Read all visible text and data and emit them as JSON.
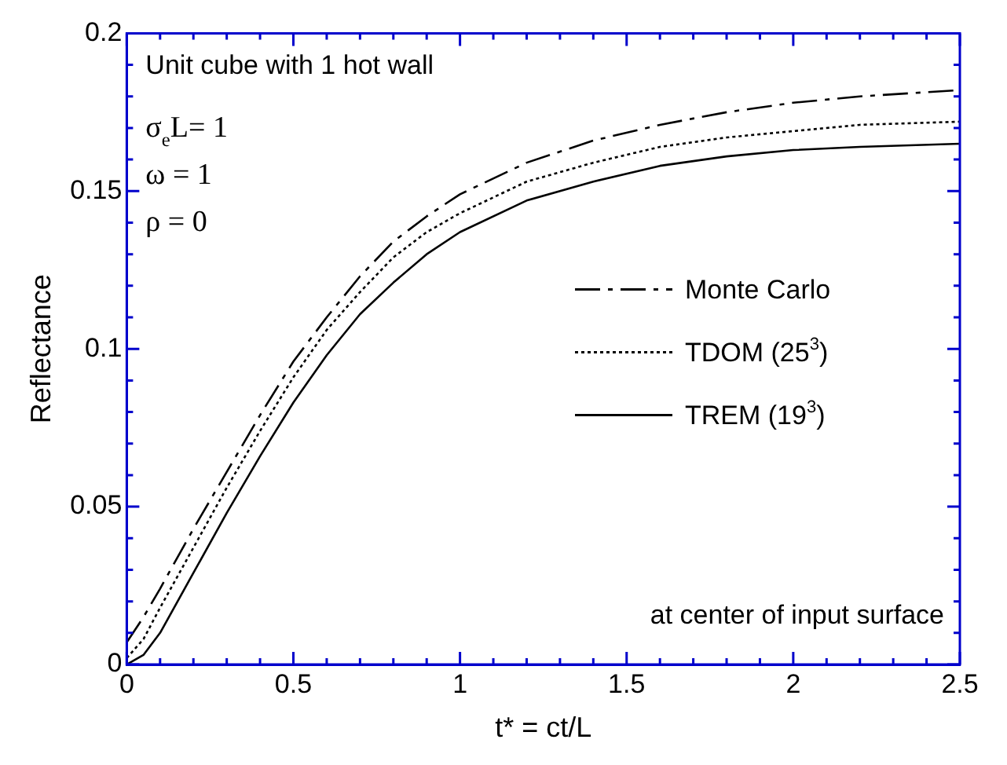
{
  "chart_data": {
    "type": "line",
    "xlabel": "t* = ct/L",
    "ylabel": "Reflectance",
    "x": [
      0,
      0.05,
      0.1,
      0.2,
      0.3,
      0.4,
      0.5,
      0.6,
      0.7,
      0.8,
      0.9,
      1.0,
      1.2,
      1.4,
      1.6,
      1.8,
      2.0,
      2.2,
      2.5
    ],
    "series": [
      {
        "name": "Monte Carlo",
        "color": "#000000",
        "line_style": "dashed",
        "values": [
          0.007,
          0.015,
          0.024,
          0.043,
          0.061,
          0.079,
          0.096,
          0.11,
          0.123,
          0.134,
          0.142,
          0.149,
          0.159,
          0.166,
          0.171,
          0.175,
          0.178,
          0.18,
          0.182
        ]
      },
      {
        "name": "TDOM (25$^{3}$)",
        "color": "#000000",
        "line_style": "dotted",
        "values": [
          0.002,
          0.008,
          0.018,
          0.037,
          0.056,
          0.074,
          0.091,
          0.106,
          0.118,
          0.129,
          0.137,
          0.143,
          0.153,
          0.159,
          0.164,
          0.167,
          0.169,
          0.171,
          0.172
        ]
      },
      {
        "name": "TREM (19$^{3}$)",
        "color": "#000000",
        "line_style": "solid",
        "values": [
          0,
          0.003,
          0.01,
          0.029,
          0.048,
          0.066,
          0.083,
          0.098,
          0.111,
          0.121,
          0.13,
          0.137,
          0.147,
          0.153,
          0.158,
          0.161,
          0.163,
          0.164,
          0.165
        ]
      }
    ],
    "xlim": [
      0,
      2.5
    ],
    "xticks": [
      0,
      {
        "value": 0.1,
        "label": null
      },
      {
        "value": 0.2,
        "label": null
      },
      {
        "value": 0.3,
        "label": null
      },
      {
        "value": 0.4,
        "label": null
      },
      0.5,
      {
        "value": 0.6,
        "label": null
      },
      {
        "value": 0.7,
        "label": null
      },
      {
        "value": 0.8,
        "label": null
      },
      {
        "value": 0.9,
        "label": null
      },
      1,
      {
        "value": 1.1,
        "label": null
      },
      {
        "value": 1.2,
        "label": null
      },
      {
        "value": 1.3,
        "label": null
      },
      {
        "value": 1.4,
        "label": null
      },
      1.5,
      {
        "value": 1.6,
        "label": null
      },
      {
        "value": 1.7,
        "label": null
      },
      {
        "value": 1.8,
        "label": null
      },
      {
        "value": 1.9,
        "label": null
      },
      2,
      {
        "value": 2.1,
        "label": null
      },
      {
        "value": 2.2,
        "label": null
      },
      {
        "value": 2.3,
        "label": null
      },
      {
        "value": 2.4,
        "label": null
      },
      2.5
    ],
    "ylim": [
      0,
      0.2
    ],
    "yticks": [
      0,
      {
        "value": 0.01,
        "label": null
      },
      {
        "value": 0.02,
        "label": null
      },
      {
        "value": 0.03,
        "label": null
      },
      {
        "value": 0.04,
        "label": null
      },
      0.05,
      {
        "value": 0.06,
        "label": null
      },
      {
        "value": 0.07,
        "label": null
      },
      {
        "value": 0.08,
        "label": null
      },
      {
        "value": 0.09,
        "label": null
      },
      0.1,
      {
        "value": 0.11,
        "label": null
      },
      {
        "value": 0.12,
        "label": null
      },
      {
        "value": 0.13,
        "label": null
      },
      {
        "value": 0.14,
        "label": null
      },
      0.15,
      {
        "value": 0.16,
        "label": null
      },
      {
        "value": 0.17,
        "label": null
      },
      {
        "value": 0.18,
        "label": null
      },
      {
        "value": 0.19,
        "label": null
      },
      0.2
    ],
    "grid": false,
    "legend": "right",
    "marker": "none",
    "annotations": [
      "Unit cube with 1 hot wall",
      "σ$_{e}$L= 1",
      "ω = 1",
      "ρ = 0",
      "at center of input surface"
    ]
  }
}
